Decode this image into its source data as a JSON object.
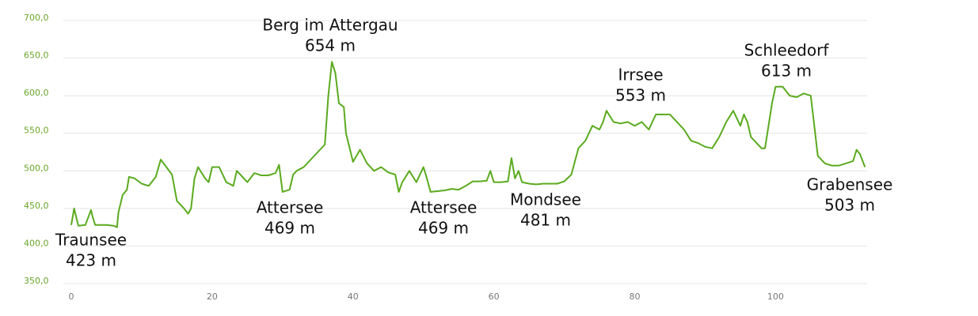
{
  "chart_data": {
    "type": "line",
    "xlim": [
      0,
      113
    ],
    "ylim": [
      350,
      700
    ],
    "xticks": [
      0,
      20,
      40,
      60,
      80,
      100
    ],
    "yticks": [
      {
        "value": 350,
        "label": "350,0"
      },
      {
        "value": 400,
        "label": "400,0"
      },
      {
        "value": 450,
        "label": "450,0"
      },
      {
        "value": 500,
        "label": "500,0"
      },
      {
        "value": 550,
        "label": "550,0"
      },
      {
        "value": 600,
        "label": "600,0"
      },
      {
        "value": 650,
        "label": "650,0"
      },
      {
        "value": 700,
        "label": "700,0"
      }
    ],
    "grid": true,
    "annotations": [
      {
        "name": "Traunsee",
        "elevation": "423 m"
      },
      {
        "name": "Berg im Attergau",
        "elevation": "654 m"
      },
      {
        "name": "Attersee",
        "elevation": "469 m"
      },
      {
        "name": "Attersee",
        "elevation": "469 m"
      },
      {
        "name": "Mondsee",
        "elevation": "481 m"
      },
      {
        "name": "Irrsee",
        "elevation": "553 m"
      },
      {
        "name": "Schleedorf",
        "elevation": "613 m"
      },
      {
        "name": "Grabensee",
        "elevation": "503 m"
      }
    ],
    "series": [
      {
        "color": "#5aaa1e",
        "x": [
          0,
          0.4,
          1,
          2,
          2.8,
          3,
          3.4,
          4,
          5,
          6,
          6.5,
          6.7,
          7.3,
          7.9,
          8.2,
          9,
          10,
          11,
          12,
          12.7,
          13.5,
          14.3,
          15,
          16,
          16.6,
          17,
          17.5,
          18,
          19,
          19.5,
          20,
          21,
          22,
          23,
          23.5,
          24,
          25,
          26,
          27,
          28,
          29,
          29.5,
          30,
          31,
          31.5,
          32,
          33,
          34,
          35,
          36,
          36.5,
          37,
          37.5,
          38,
          38.7,
          39,
          40,
          41,
          42,
          43,
          44,
          45,
          46,
          46.5,
          47,
          48,
          49,
          50,
          50.5,
          51,
          52,
          53,
          54,
          55,
          56,
          57,
          58,
          59,
          59.5,
          60,
          61,
          62,
          62.5,
          63,
          63.5,
          64,
          65,
          66,
          67,
          68,
          69,
          70,
          71,
          72,
          73,
          74,
          75,
          75.5,
          76,
          77,
          78,
          79,
          80,
          81,
          82,
          83,
          84,
          85,
          86,
          87,
          88,
          89,
          90,
          91,
          92,
          93,
          94,
          95,
          95.5,
          96,
          96.5,
          97,
          98,
          98.5,
          99,
          99.5,
          100,
          101,
          102,
          103,
          104,
          105,
          105.5,
          106,
          107,
          108,
          109,
          110,
          111,
          111.5,
          112,
          112.7
        ],
        "values": [
          428,
          450,
          427,
          428,
          448,
          440,
          428,
          428,
          428,
          427,
          425,
          445,
          468,
          475,
          492,
          490,
          483,
          480,
          492,
          515,
          505,
          495,
          460,
          450,
          443,
          450,
          490,
          505,
          490,
          485,
          505,
          505,
          485,
          480,
          500,
          495,
          485,
          497,
          494,
          494,
          497,
          508,
          472,
          475,
          495,
          500,
          505,
          515,
          525,
          535,
          600,
          645,
          630,
          590,
          585,
          550,
          512,
          528,
          510,
          500,
          505,
          498,
          495,
          472,
          485,
          500,
          485,
          505,
          490,
          472,
          473,
          474,
          476,
          475,
          480,
          486,
          486,
          487,
          500,
          485,
          485,
          486,
          517,
          490,
          500,
          485,
          483,
          482,
          483,
          483,
          483,
          486,
          495,
          530,
          540,
          560,
          555,
          565,
          580,
          565,
          563,
          565,
          560,
          565,
          555,
          575,
          575,
          575,
          565,
          555,
          540,
          537,
          532,
          530,
          545,
          565,
          580,
          560,
          575,
          565,
          545,
          540,
          530,
          530,
          560,
          590,
          612,
          612,
          600,
          598,
          603,
          600,
          560,
          520,
          510,
          507,
          507,
          510,
          513,
          528,
          522,
          505
        ]
      }
    ]
  }
}
